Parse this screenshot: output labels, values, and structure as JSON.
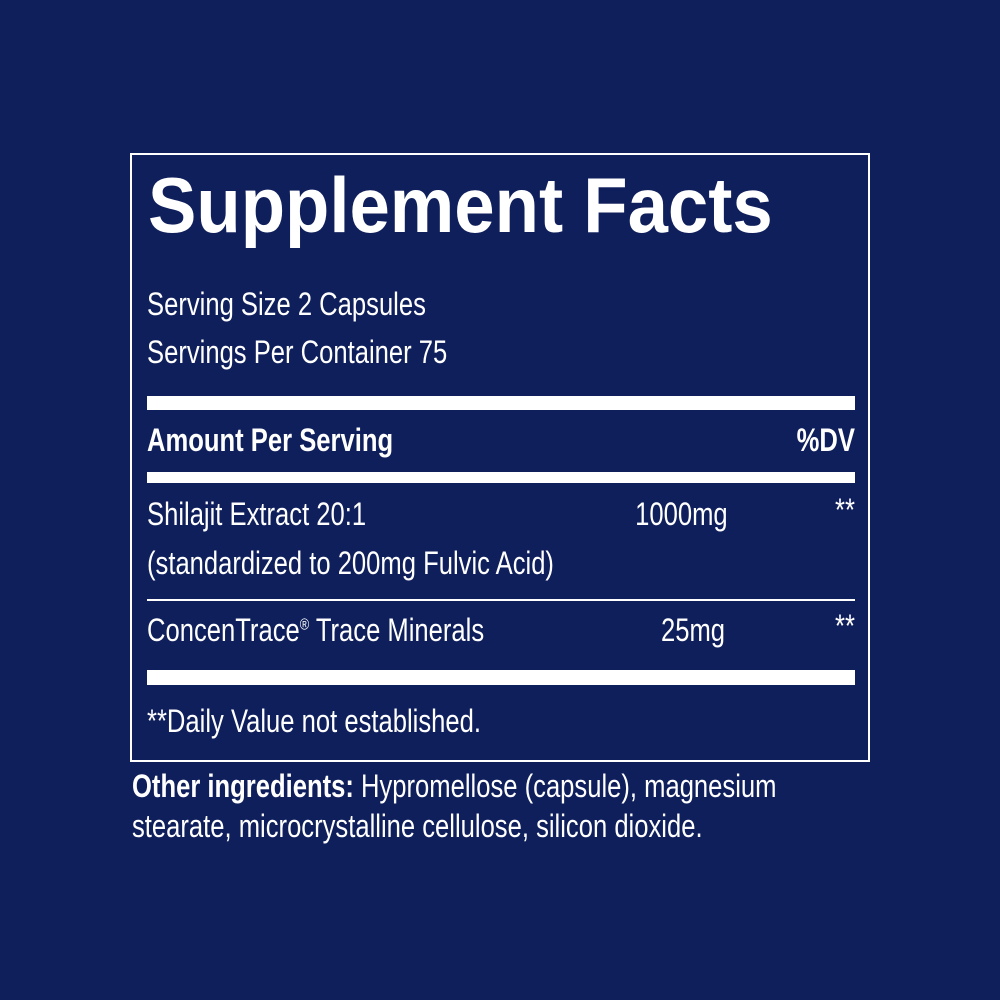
{
  "panel": {
    "title": "Supplement Facts",
    "serving_size": "Serving Size 2 Capsules",
    "servings_per_container": "Servings Per Container 75",
    "header": {
      "amount_label": "Amount Per Serving",
      "dv_label": "%DV"
    },
    "ingredients": [
      {
        "name": "Shilajit Extract 20:1",
        "note": "(standardized to 200mg Fulvic Acid)",
        "amount": "1000mg",
        "dv": "**"
      },
      {
        "name": "ConcenTrace",
        "trademark": "®",
        "name_suffix": " Trace Minerals",
        "amount": "25mg",
        "dv": "**"
      }
    ],
    "footnote": "**Daily Value not established."
  },
  "other_ingredients": {
    "label": "Other ingredients:",
    "line1": " Hypromellose (capsule), magnesium",
    "line2": "stearate, microcrystalline cellulose, silicon dioxide."
  },
  "colors": {
    "background": "#0f1f5b",
    "text": "#ffffff"
  }
}
